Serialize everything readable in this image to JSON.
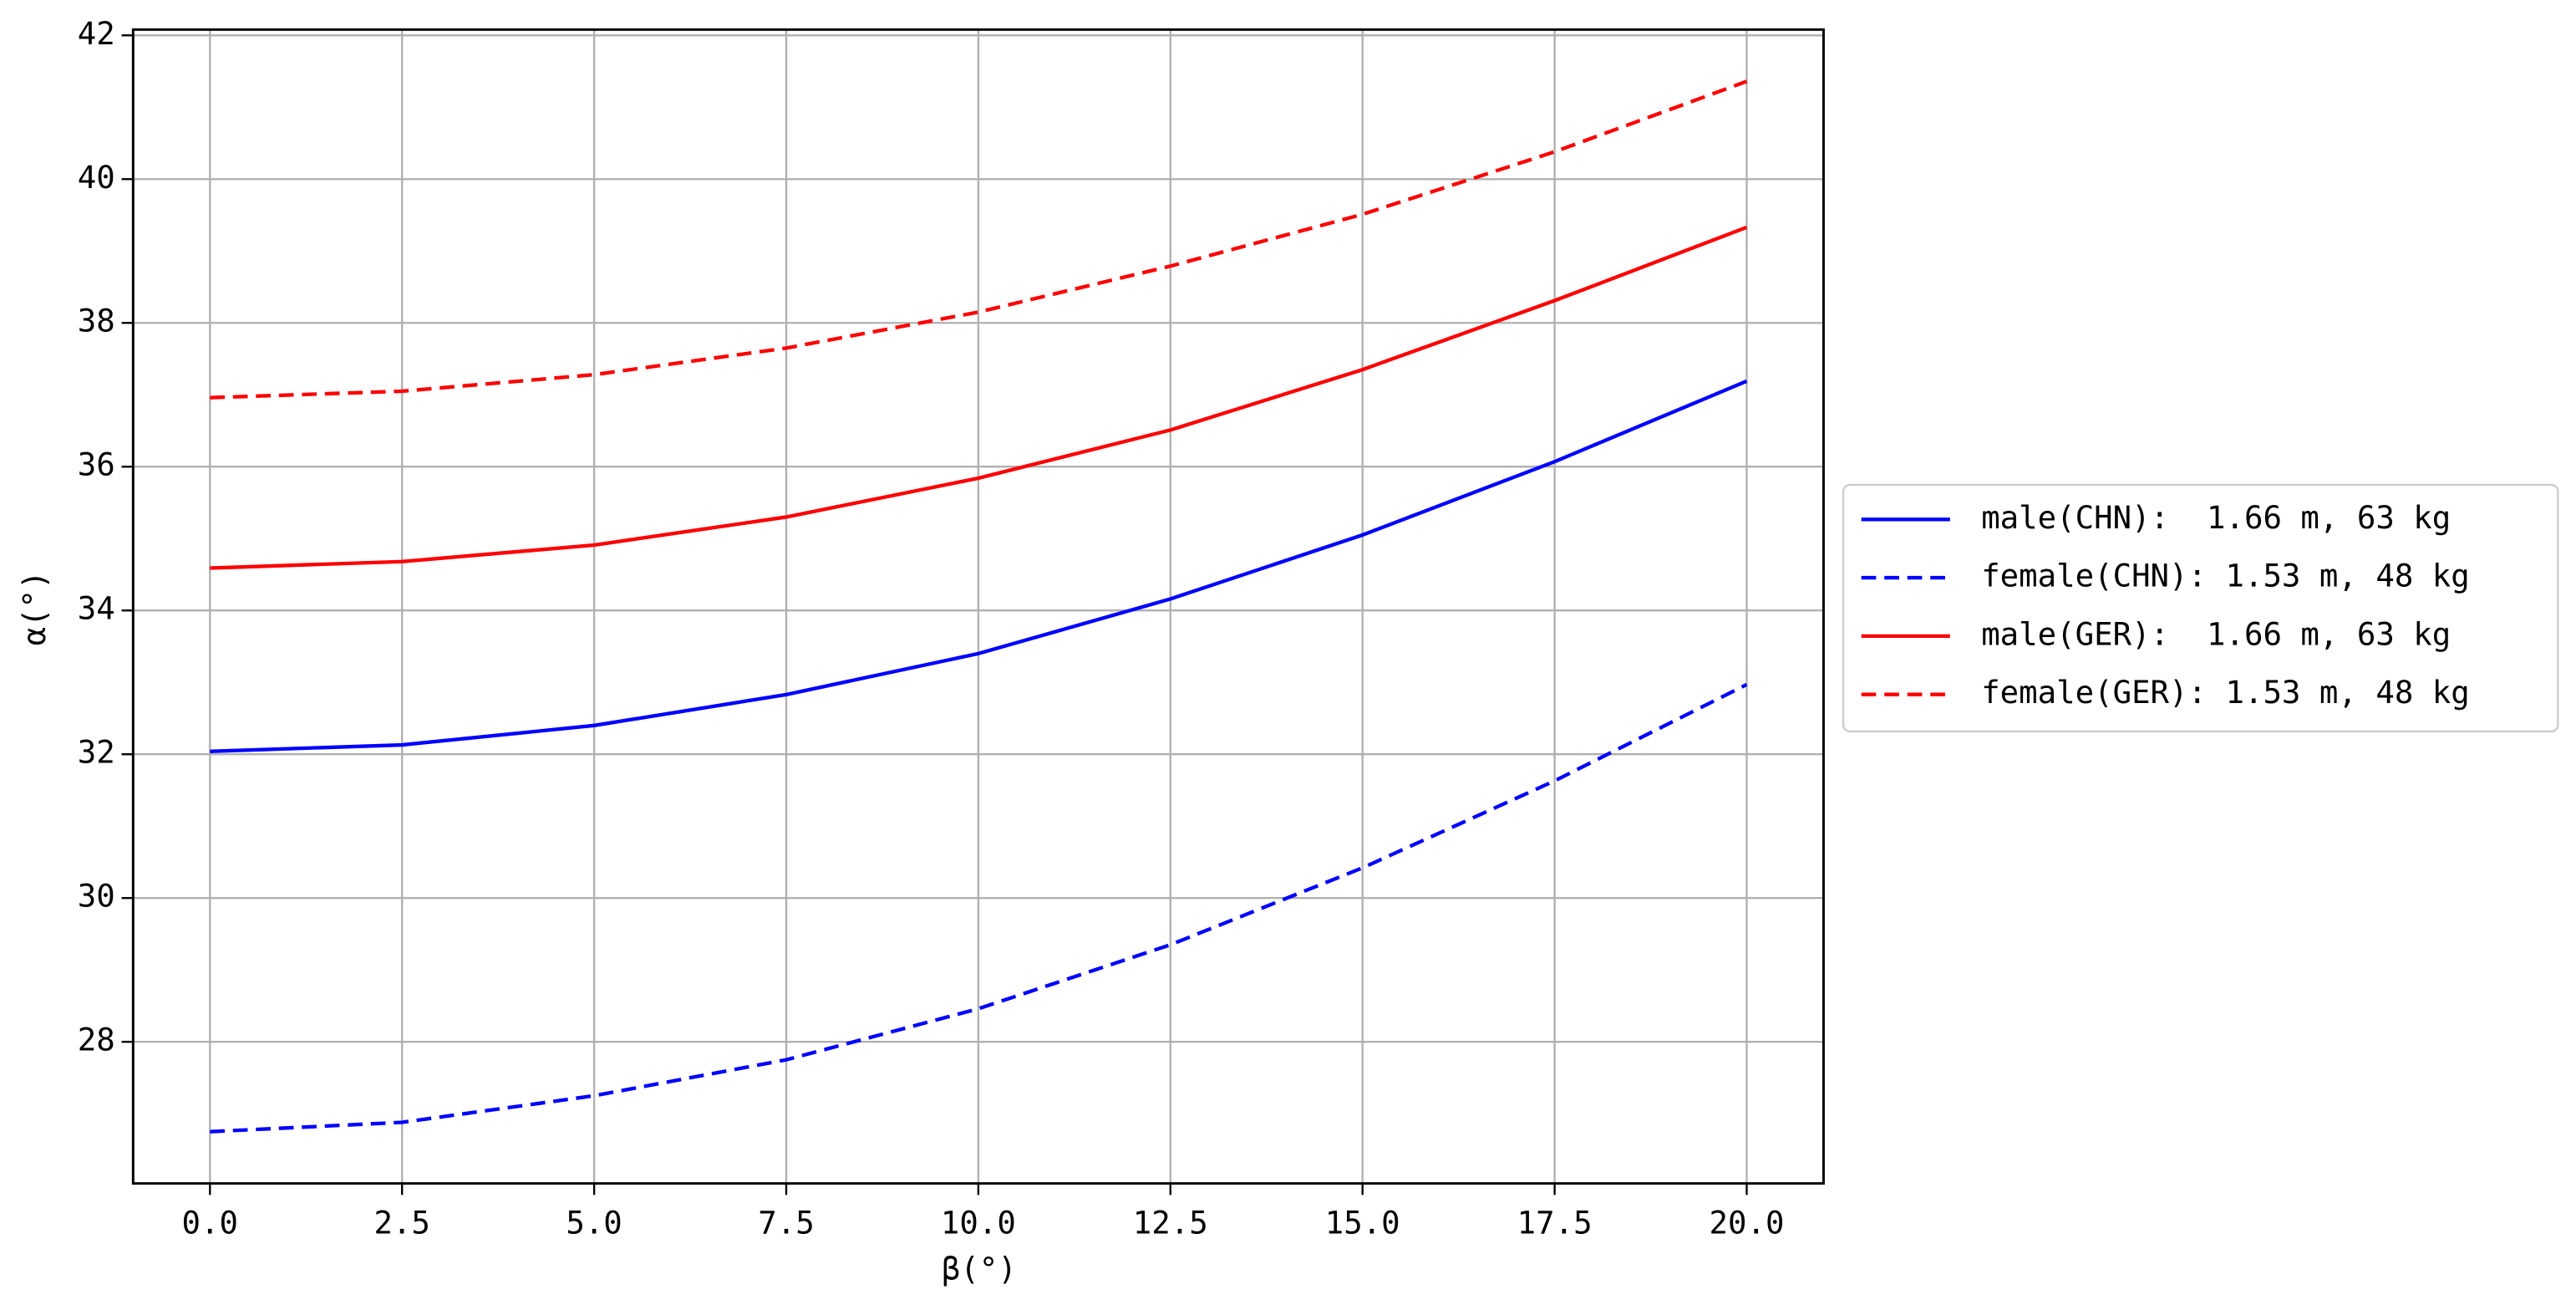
{
  "chart_data": {
    "type": "line",
    "xlabel": "β(°)",
    "ylabel": "α(°)",
    "x": [
      0,
      2.5,
      5,
      7.5,
      10,
      12.5,
      15,
      17.5,
      20
    ],
    "series": [
      {
        "name": "male(CHN):  1.66 m, 63 kg",
        "color": "#0000ff",
        "linestyle": "solid",
        "values": [
          32.04,
          32.13,
          32.4,
          32.83,
          33.4,
          34.16,
          35.05,
          36.07,
          37.19
        ]
      },
      {
        "name": "female(CHN): 1.53 m, 48 kg",
        "color": "#0000ff",
        "linestyle": "dashed",
        "values": [
          26.75,
          26.88,
          27.25,
          27.75,
          28.46,
          29.35,
          30.42,
          31.63,
          32.97
        ]
      },
      {
        "name": "male(GER):  1.66 m, 63 kg",
        "color": "#ff0000",
        "linestyle": "solid",
        "values": [
          34.59,
          34.68,
          34.91,
          35.3,
          35.84,
          36.51,
          37.35,
          38.31,
          39.33
        ]
      },
      {
        "name": "female(GER): 1.53 m, 48 kg",
        "color": "#ff0000",
        "linestyle": "dashed",
        "values": [
          36.96,
          37.05,
          37.28,
          37.65,
          38.15,
          38.79,
          39.51,
          40.38,
          41.36
        ]
      }
    ],
    "xlim": [
      -1,
      21
    ],
    "ylim": [
      26.03,
      42.08
    ],
    "xticks": [
      {
        "value": 0,
        "label": "0.0"
      },
      2.5,
      {
        "value": 5,
        "label": "5.0"
      },
      7.5,
      {
        "value": 10,
        "label": "10.0"
      },
      12.5,
      {
        "value": 15,
        "label": "15.0"
      },
      17.5,
      {
        "value": 20,
        "label": "20.0"
      }
    ],
    "yticks": [
      28,
      30,
      32,
      34,
      36,
      38,
      40,
      42
    ],
    "grid": true,
    "legend": "outside right"
  }
}
